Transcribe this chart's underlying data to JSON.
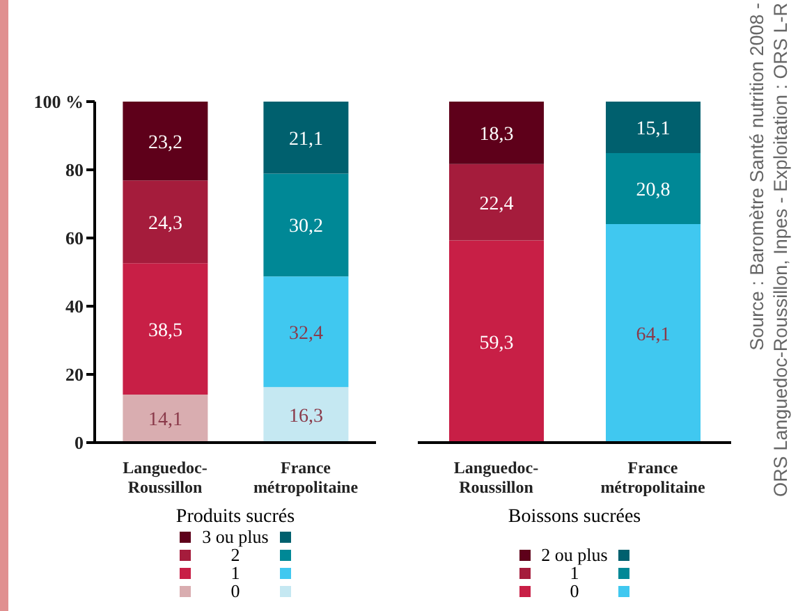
{
  "chart_data": [
    {
      "type": "bar",
      "stacked": true,
      "xlabel": "Produits sucrés",
      "categories": [
        "Languedoc-Roussillon",
        "France métropolitaine"
      ],
      "ylim": [
        0,
        100
      ],
      "yticks": [
        0,
        20,
        40,
        60,
        80,
        {
          "value": 100,
          "label": "100 %"
        }
      ],
      "legend": "bottom",
      "series": [
        {
          "name": "0",
          "colors": [
            "#d9adb0",
            "#c5e8f2"
          ],
          "values": [
            14.1,
            16.3
          ],
          "value_labels": [
            "14,1",
            "16,3"
          ]
        },
        {
          "name": "1",
          "colors": [
            "#c81f46",
            "#40c8f0"
          ],
          "values": [
            38.5,
            32.4
          ],
          "value_labels": [
            "38,5",
            "32,4"
          ]
        },
        {
          "name": "2",
          "colors": [
            "#a51c3c",
            "#008896"
          ],
          "values": [
            24.3,
            30.2
          ],
          "value_labels": [
            "24,3",
            "30,2"
          ]
        },
        {
          "name": "3 ou plus",
          "colors": [
            "#5e001a",
            "#00606e"
          ],
          "values": [
            23.2,
            21.1
          ],
          "value_labels": [
            "23,2",
            "21,1"
          ]
        }
      ]
    },
    {
      "type": "bar",
      "stacked": true,
      "xlabel": "Boissons sucrées",
      "categories": [
        "Languedoc-Roussillon",
        "France métropolitaine"
      ],
      "ylim": [
        0,
        100
      ],
      "yticks": [
        0,
        20,
        40,
        60,
        80,
        100
      ],
      "tick_labels": "x",
      "legend": "bottom",
      "series": [
        {
          "name": "0",
          "colors": [
            "#c81f46",
            "#40c8f0"
          ],
          "values": [
            59.3,
            64.1
          ],
          "value_labels": [
            "59,3",
            "64,1"
          ]
        },
        {
          "name": "1",
          "colors": [
            "#a51c3c",
            "#008896"
          ],
          "values": [
            22.4,
            20.8
          ],
          "value_labels": [
            "22,4",
            "20,8"
          ]
        },
        {
          "name": "2 ou plus",
          "colors": [
            "#5e001a",
            "#00606e"
          ],
          "values": [
            18.3,
            15.1
          ],
          "value_labels": [
            "18,3",
            "15,1"
          ]
        }
      ],
      "annotations": [
        "Source : Baromètre Santé nutrition 2008 -",
        "ORS Languedoc-Roussillon, Inpes - Exploitation : ORS L-R"
      ]
    }
  ]
}
